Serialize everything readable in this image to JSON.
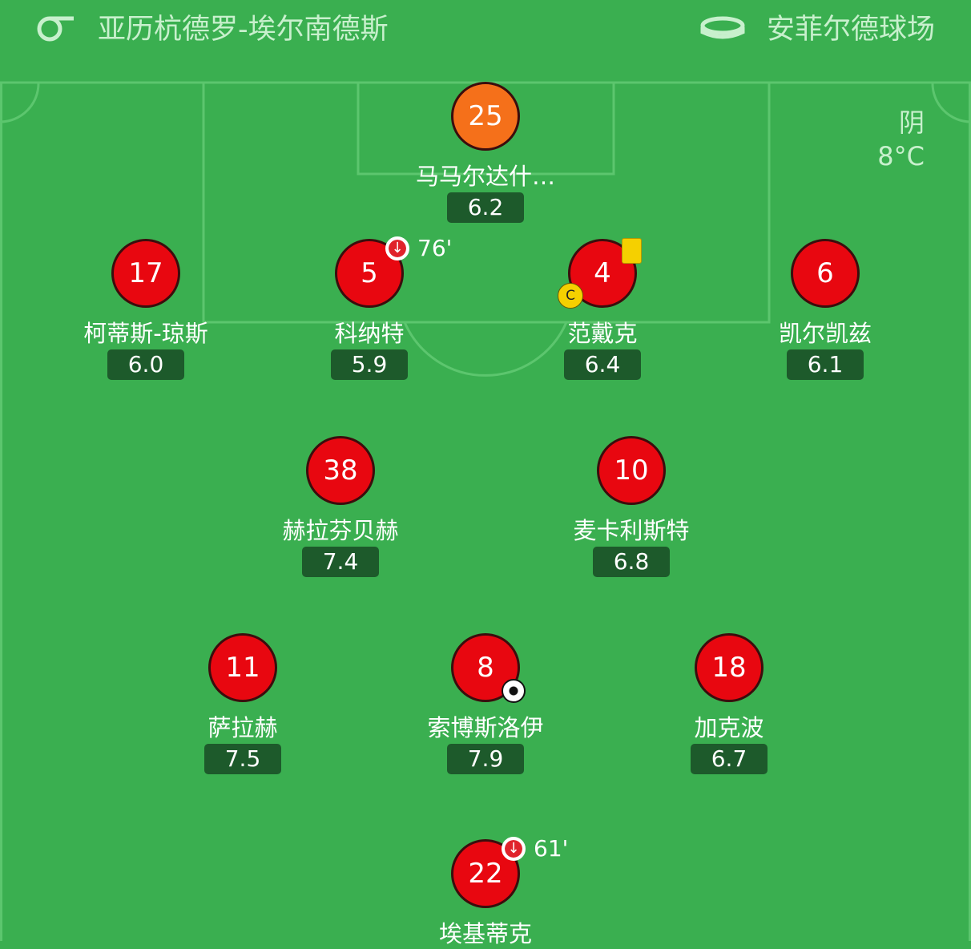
{
  "header": {
    "referee": "亚历杭德罗-埃尔南德斯",
    "stadium": "安菲尔德球场"
  },
  "weather": {
    "condition": "阴",
    "temperature": "8°C"
  },
  "players": [
    {
      "number": "25",
      "name": "马马尔达什…",
      "rating": "6.2"
    },
    {
      "number": "17",
      "name": "柯蒂斯-琼斯",
      "rating": "6.0"
    },
    {
      "number": "5",
      "name": "科纳特",
      "rating": "5.9",
      "sub_off": "76'"
    },
    {
      "number": "4",
      "name": "范戴克",
      "rating": "6.4",
      "captain": "C",
      "yellow_card": true
    },
    {
      "number": "6",
      "name": "凯尔凯兹",
      "rating": "6.1"
    },
    {
      "number": "38",
      "name": "赫拉芬贝赫",
      "rating": "7.4"
    },
    {
      "number": "10",
      "name": "麦卡利斯特",
      "rating": "6.8"
    },
    {
      "number": "11",
      "name": "萨拉赫",
      "rating": "7.5"
    },
    {
      "number": "8",
      "name": "索博斯洛伊",
      "rating": "7.9",
      "goal": true
    },
    {
      "number": "18",
      "name": "加克波",
      "rating": "6.7"
    },
    {
      "number": "22",
      "name": "埃基蒂克",
      "sub_off": "61'"
    }
  ]
}
